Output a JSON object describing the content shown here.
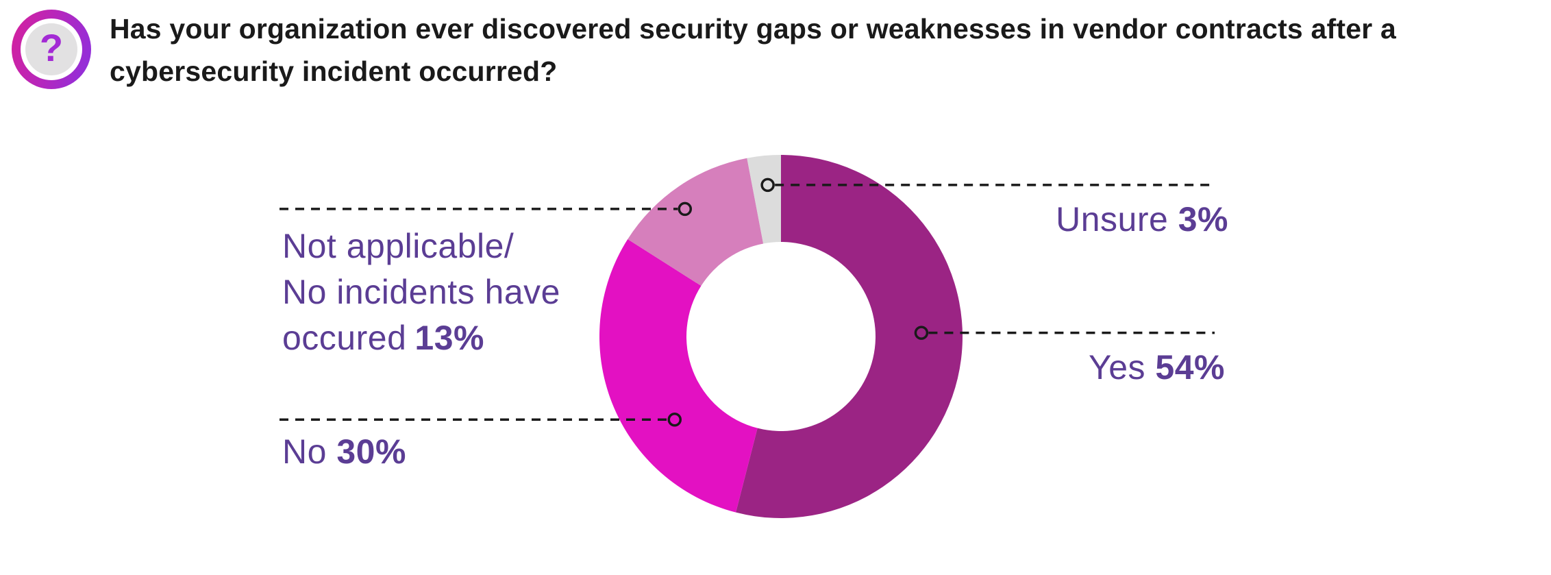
{
  "header": {
    "icon": {
      "name": "question-mark-icon",
      "glyph": "?"
    },
    "title": "Has your organization ever discovered security gaps or weaknesses in vendor contracts after a cybersecurity incident occurred?",
    "title_lines": [
      "Has your organization ever discovered security gaps or weaknesses in vendor contracts after a",
      "cybersecurity incident occurred?"
    ]
  },
  "colors": {
    "title_text": "#1A1A1A",
    "label_text": "#5B3D94",
    "leader_line": "#1A1A1A",
    "icon_gradient_start": "#D6219C",
    "icon_gradient_end": "#8B30DF",
    "icon_inner_bg": "#E2E1E2",
    "icon_glyph": "#A32AD4"
  },
  "chart_data": {
    "type": "pie",
    "subtype": "donut",
    "title": "Has your organization ever discovered security gaps or weaknesses in vendor contracts after a cybersecurity incident occurred?",
    "units": "percent",
    "start_angle_deg": 0,
    "direction": "clockwise",
    "inner_radius_ratio": 0.52,
    "legend_position": "callout-labels",
    "segments": [
      {
        "label": "Yes",
        "value": 54,
        "pct_label": "54%",
        "color": "#9B2484"
      },
      {
        "label": "No",
        "value": 30,
        "pct_label": "30%",
        "color": "#E311C2"
      },
      {
        "label": "Not applicable/ No incidents have occured",
        "label_lines": [
          "Not applicable/",
          "No incidents have",
          "occured"
        ],
        "value": 13,
        "pct_label": "13%",
        "color": "#D67FBC"
      },
      {
        "label": "Unsure",
        "value": 3,
        "pct_label": "3%",
        "color": "#DCDCDC"
      }
    ]
  }
}
